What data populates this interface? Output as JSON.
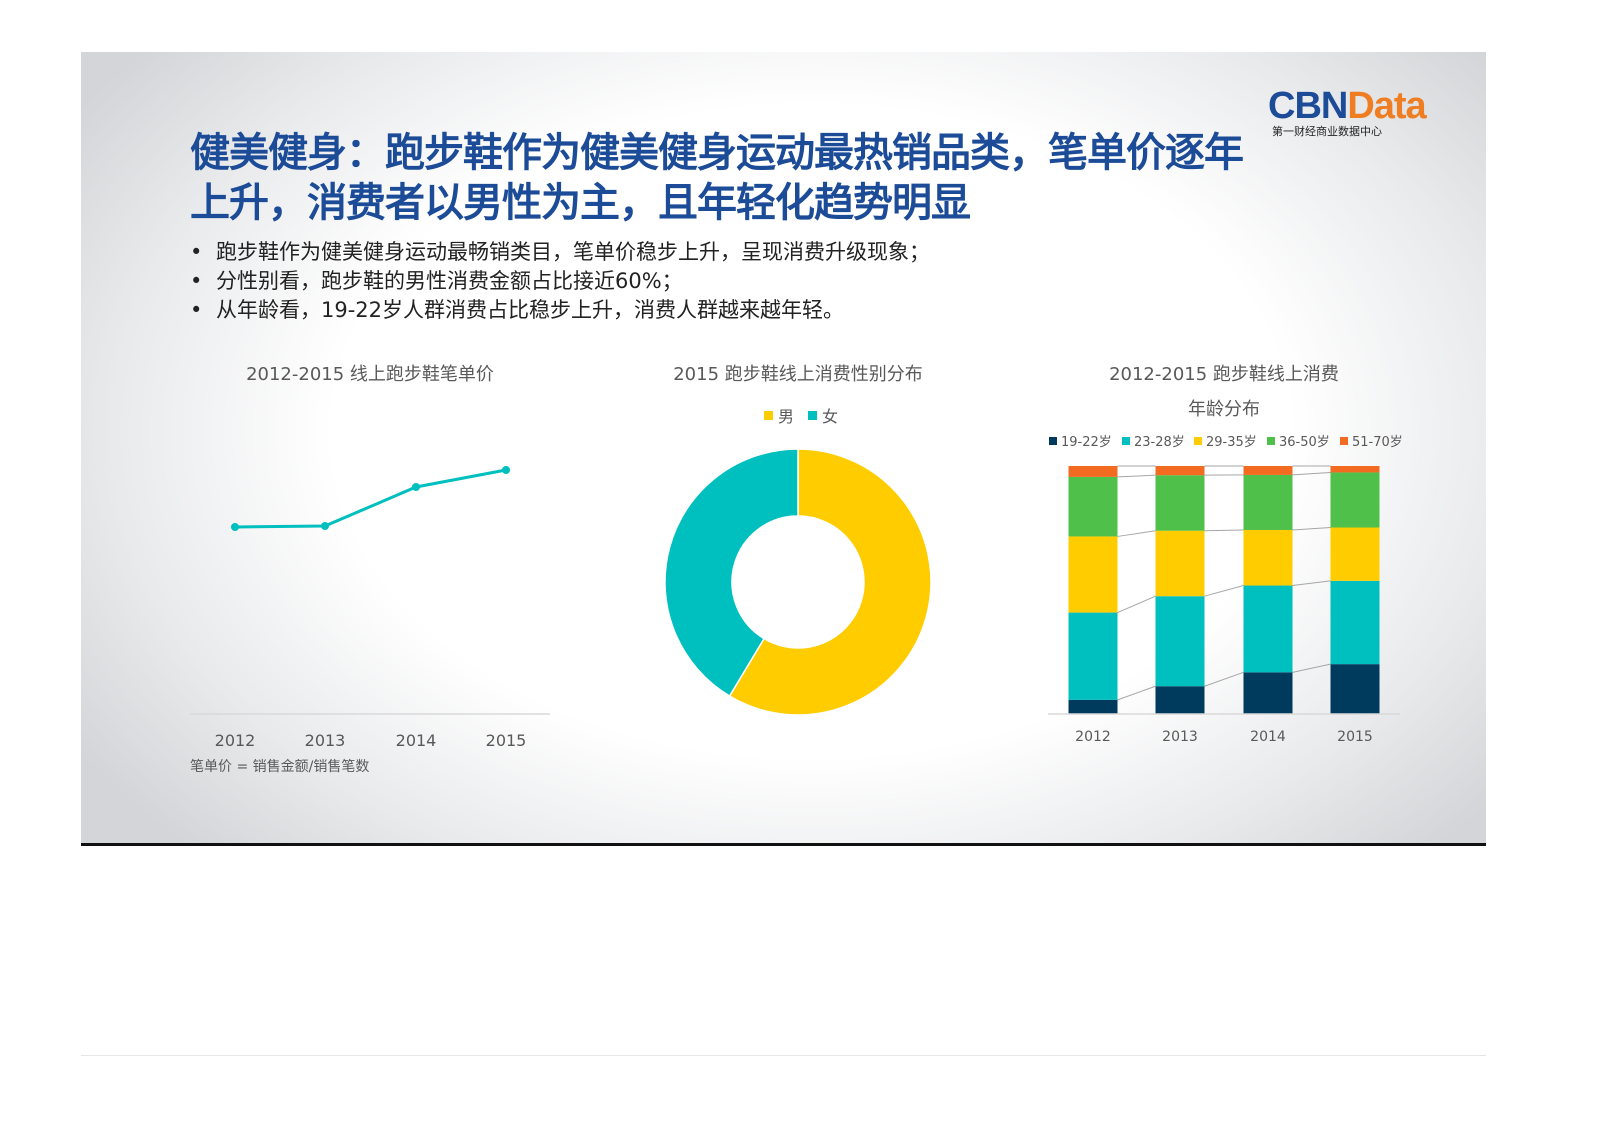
{
  "title": "健美健身：跑步鞋作为健美健身运动最热销品类，笔单价逐年上升，消费者以男性为主，且年轻化趋势明显",
  "bullets": [
    "跑步鞋作为健美健身运动最畅销类目，笔单价稳步上升，呈现消费升级现象；",
    "分性别看，跑步鞋的男性消费金额占比接近60%；",
    "从年龄看，19-22岁人群消费占比稳步上升，消费人群越来越年轻。"
  ],
  "logo": {
    "part1": "CBN",
    "part2": "Data",
    "subtitle": "第一财经商业数据中心"
  },
  "colors": {
    "teal": "#00bfbf",
    "yellow": "#ffcc00",
    "navy": "#003a5d",
    "green": "#4fc04a",
    "orange": "#f26b21",
    "title_blue": "#1c4b97"
  },
  "chart_data": [
    {
      "type": "line",
      "title": "2012-2015 线上跑步鞋笔单价",
      "categories": [
        "2012",
        "2013",
        "2014",
        "2015"
      ],
      "values": [
        187,
        188,
        227,
        244
      ],
      "ylim": [
        0,
        260
      ],
      "note": "笔单价 = 销售金额/销售笔数",
      "grid": false
    },
    {
      "type": "pie",
      "title": "2015 跑步鞋线上消费性别分布",
      "labels": [
        "男",
        "女"
      ],
      "values": [
        58.6,
        41.4
      ],
      "legend": "top"
    },
    {
      "type": "bar",
      "stacked": true,
      "title_line1": "2012-2015 跑步鞋线上消费",
      "title_line2": "年龄分布",
      "categories": [
        "2012",
        "2013",
        "2014",
        "2015"
      ],
      "series": [
        {
          "name": "19-22岁",
          "values": [
            5.7,
            11.2,
            16.8,
            20.1
          ]
        },
        {
          "name": "23-28岁",
          "values": [
            35.2,
            36.3,
            35.0,
            33.6
          ]
        },
        {
          "name": "29-35岁",
          "values": [
            30.7,
            26.4,
            22.4,
            21.5
          ]
        },
        {
          "name": "36-50岁",
          "values": [
            24.0,
            22.4,
            22.2,
            22.2
          ]
        },
        {
          "name": "51-70岁",
          "values": [
            4.4,
            3.7,
            3.6,
            2.6
          ]
        }
      ],
      "ylim": [
        0,
        100
      ],
      "legend": "top"
    }
  ]
}
